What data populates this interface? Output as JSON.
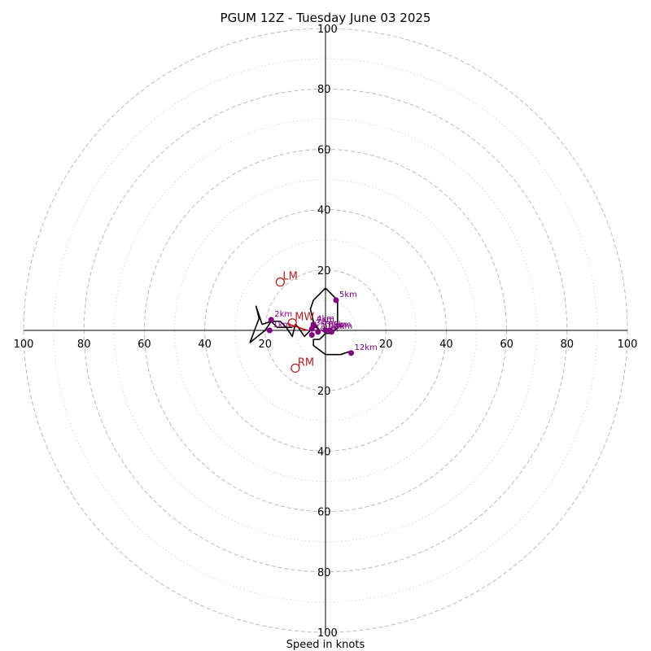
{
  "chart_data": {
    "type": "scatter",
    "subtype": "hodograph",
    "title": "PGUM 12Z - Tuesday June 03 2025",
    "xlabel": "Speed in knots",
    "ylabel": "",
    "xlim": [
      -100,
      100
    ],
    "ylim": [
      -100,
      100
    ],
    "major_rings": [
      20,
      40,
      60,
      80,
      100
    ],
    "minor_rings": [
      10,
      30,
      50,
      70,
      90
    ],
    "x_ticks": [
      {
        "value": -100,
        "label": "100"
      },
      {
        "value": -80,
        "label": "80"
      },
      {
        "value": -60,
        "label": "60"
      },
      {
        "value": -40,
        "label": "40"
      },
      {
        "value": -20,
        "label": "20"
      },
      {
        "value": 20,
        "label": "20"
      },
      {
        "value": 40,
        "label": "40"
      },
      {
        "value": 60,
        "label": "60"
      },
      {
        "value": 80,
        "label": "80"
      },
      {
        "value": 100,
        "label": "100"
      }
    ],
    "y_ticks": [
      {
        "value": 100,
        "label": "100"
      },
      {
        "value": 80,
        "label": "80"
      },
      {
        "value": 60,
        "label": "60"
      },
      {
        "value": 40,
        "label": "40"
      },
      {
        "value": 20,
        "label": "20"
      },
      {
        "value": -20,
        "label": "20"
      },
      {
        "value": -40,
        "label": "40"
      },
      {
        "value": -60,
        "label": "60"
      },
      {
        "value": -80,
        "label": "80"
      },
      {
        "value": -100,
        "label": "100"
      }
    ],
    "grid": true,
    "hodograph_trace": [
      [
        -11,
        1
      ],
      [
        -16,
        1
      ],
      [
        -18,
        3
      ],
      [
        -21,
        2
      ],
      [
        -23,
        8
      ],
      [
        -22,
        4
      ],
      [
        -25,
        -4
      ],
      [
        -20,
        0
      ],
      [
        -18,
        3
      ],
      [
        -15,
        3
      ],
      [
        -13,
        1
      ],
      [
        -11,
        -2
      ],
      [
        -10,
        2
      ],
      [
        -9,
        1
      ],
      [
        -7,
        -2
      ],
      [
        -6,
        -1
      ],
      [
        -5,
        0
      ],
      [
        -4,
        1
      ],
      [
        -3,
        1
      ],
      [
        -2,
        0
      ],
      [
        -4,
        3
      ],
      [
        -5,
        7
      ],
      [
        -4,
        10
      ],
      [
        0,
        14
      ],
      [
        4,
        10
      ],
      [
        4,
        1
      ],
      [
        3,
        0
      ],
      [
        2,
        -1
      ],
      [
        0,
        -1
      ],
      [
        -2,
        -3
      ],
      [
        -4,
        -3
      ],
      [
        -4,
        -5
      ],
      [
        0,
        -8
      ],
      [
        5,
        -8
      ],
      [
        8,
        -7
      ]
    ],
    "height_markers": [
      {
        "label": "1km",
        "x": -18.5,
        "y": 0
      },
      {
        "label": "2km",
        "x": -18,
        "y": 3.5
      },
      {
        "label": "3km",
        "x": -4.5,
        "y": 0.5
      },
      {
        "label": "4km",
        "x": -4,
        "y": 2
      },
      {
        "label": "5km",
        "x": 3.5,
        "y": 10
      },
      {
        "label": "6km",
        "x": 0,
        "y": 0
      },
      {
        "label": "7km",
        "x": -4,
        "y": 1.5
      },
      {
        "label": "8km",
        "x": 2,
        "y": -0.5
      },
      {
        "label": "9km",
        "x": 1.5,
        "y": 0
      },
      {
        "label": "10km",
        "x": -4.5,
        "y": -1.5
      },
      {
        "label": "11km",
        "x": -2.5,
        "y": -0.5
      },
      {
        "label": "12km",
        "x": 8.5,
        "y": -7.5
      }
    ],
    "motion_markers": [
      {
        "label": "LM",
        "x": -15,
        "y": 16
      },
      {
        "label": "MW",
        "x": -11,
        "y": 2.5
      },
      {
        "label": "RM",
        "x": -10,
        "y": -12.5
      }
    ],
    "shear_vector": {
      "from": [
        -12,
        2
      ],
      "to": [
        -6,
        0
      ]
    },
    "colors": {
      "trace": "#000000",
      "height_marker": "#800080",
      "motion_marker": "#b22222",
      "shear_vector": "#d00000",
      "major_ring": "#bbbbbb",
      "minor_ring": "#d8d8d8"
    }
  }
}
